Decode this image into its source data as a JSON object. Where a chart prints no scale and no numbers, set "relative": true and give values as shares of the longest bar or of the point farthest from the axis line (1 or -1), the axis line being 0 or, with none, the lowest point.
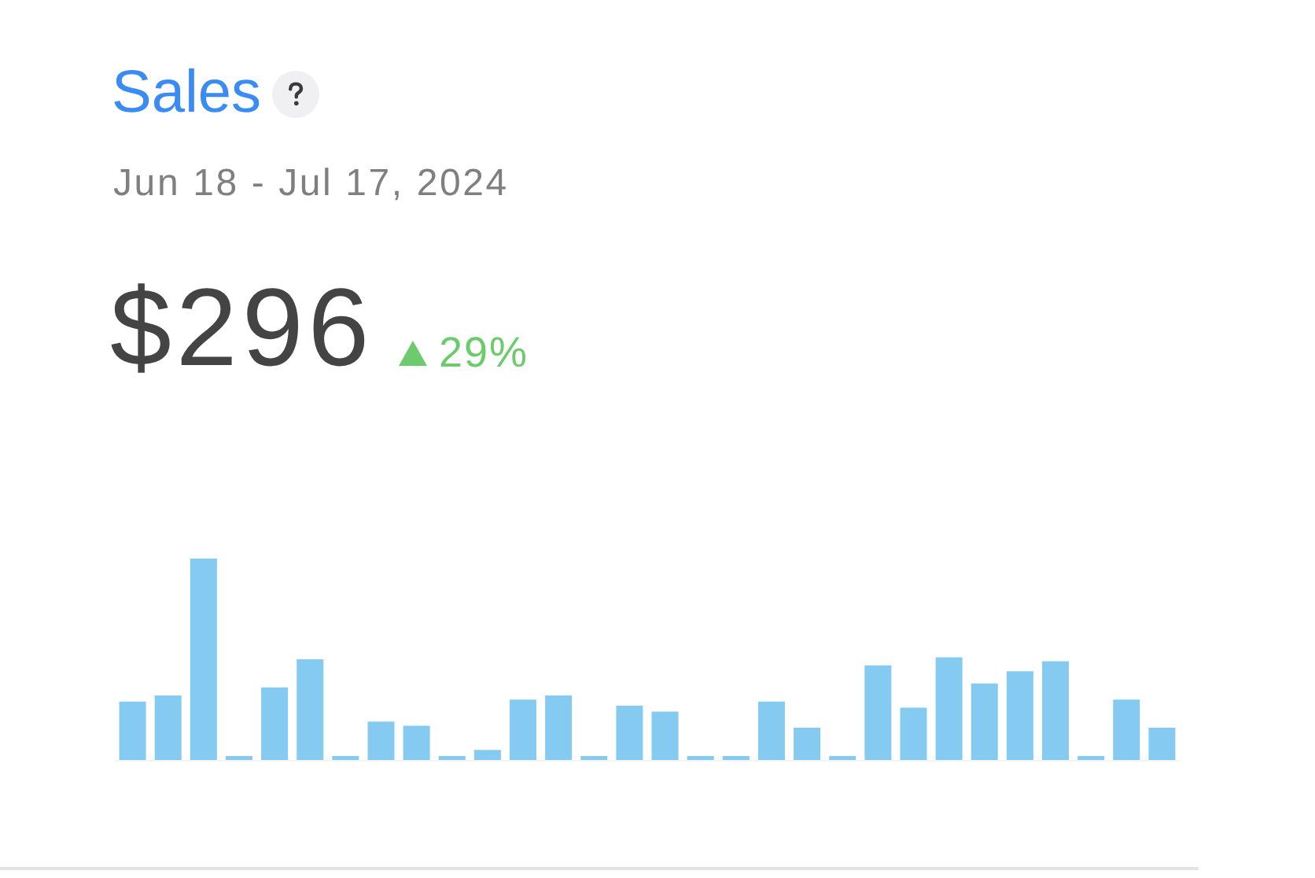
{
  "chart_data": {
    "type": "bar",
    "title": "Sales",
    "subtitle": "Jun 18 - Jul 17, 2024",
    "annotations": [
      "$296",
      "29%"
    ],
    "categories": [
      null,
      null,
      null,
      null,
      null,
      null,
      null,
      null,
      null,
      null,
      null,
      null,
      null,
      null,
      null,
      null,
      null,
      null,
      null,
      null,
      null,
      null,
      null,
      null,
      null,
      null,
      null,
      null,
      null,
      null
    ],
    "values": [
      0.29,
      0.32,
      1,
      0.02,
      0.36,
      0.5,
      0.02,
      0.19,
      0.17,
      0.02,
      0.05,
      0.3,
      0.32,
      0.02,
      0.27,
      0.24,
      0.02,
      0.02,
      0.29,
      0.16,
      0.02,
      0.47,
      0.26,
      0.51,
      0.38,
      0.44,
      0.49,
      0.02,
      0.3,
      0.16
    ],
    "color": "#85cbf1",
    "relative": true
  }
}
